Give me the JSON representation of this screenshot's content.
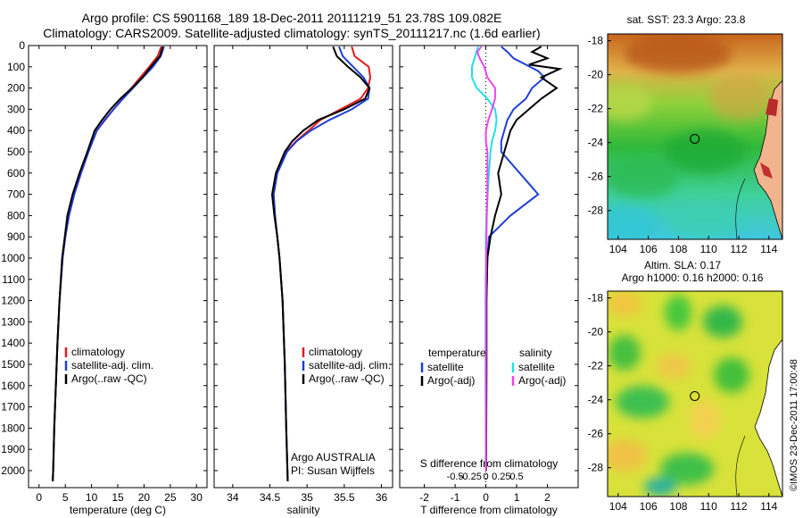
{
  "header": {
    "line1": "Argo profile: CS 5901168_189 18-Dec-2011 20111219_51 23.78S 109.082E",
    "line2": "Climatology: CARS2009. Satellite-adjusted climatology: synTS_20111217.nc (1.6d earlier)"
  },
  "colors": {
    "climatology": "#e31a1c",
    "satellite": "#1f3fd6",
    "argo": "#000000",
    "salinity_sat": "#20e0e8",
    "salinity_argo": "#ee44ee"
  },
  "chart_data": [
    {
      "type": "line",
      "name": "temperature_panel",
      "xlabel": "temperature (deg C)",
      "ylabel": "",
      "xlim": [
        -2,
        32
      ],
      "ylim": [
        2080,
        0
      ],
      "xticks": [
        0,
        5,
        10,
        15,
        20,
        25,
        30
      ],
      "yticks": [
        0,
        100,
        200,
        300,
        400,
        500,
        600,
        700,
        800,
        900,
        1000,
        1100,
        1200,
        1300,
        1400,
        1500,
        1600,
        1700,
        1800,
        1900,
        2000
      ],
      "legend": [
        "climatology",
        "satellite-adj. clim.",
        "Argo(..raw -QC)"
      ],
      "series": [
        {
          "name": "climatology",
          "color": "#e31a1c",
          "depth": [
            5,
            50,
            100,
            150,
            200,
            250,
            300,
            350,
            400,
            500,
            600,
            700,
            800,
            900,
            1000,
            1200,
            1400,
            1600,
            1800,
            2000,
            2050
          ],
          "values": [
            23.3,
            22.6,
            21.0,
            19.3,
            17.6,
            15.9,
            14.2,
            12.6,
            11.0,
            9.4,
            8.0,
            6.7,
            5.7,
            5.0,
            4.5,
            3.9,
            3.5,
            3.2,
            2.9,
            2.7,
            2.6
          ]
        },
        {
          "name": "satellite-adj. clim.",
          "color": "#1f3fd6",
          "depth": [
            5,
            50,
            100,
            150,
            200,
            250,
            300,
            350,
            400,
            500,
            600,
            700,
            800,
            900,
            1000,
            1200,
            1400,
            1600,
            1800,
            2000,
            2050
          ],
          "values": [
            23.8,
            23.2,
            21.7,
            19.8,
            17.9,
            16.0,
            14.2,
            12.5,
            11.0,
            9.4,
            8.0,
            6.7,
            5.7,
            5.0,
            4.5,
            3.9,
            3.5,
            3.2,
            2.9,
            2.7,
            2.6
          ]
        },
        {
          "name": "Argo(..raw -QC)",
          "color": "#000000",
          "depth": [
            5,
            50,
            100,
            150,
            200,
            250,
            300,
            350,
            400,
            500,
            600,
            700,
            800,
            900,
            1000,
            1200,
            1400,
            1600,
            1800,
            2000,
            2050
          ],
          "values": [
            23.6,
            23.0,
            21.3,
            19.7,
            17.7,
            15.5,
            13.6,
            12.0,
            10.6,
            9.2,
            7.7,
            6.4,
            5.4,
            4.9,
            4.4,
            3.9,
            3.5,
            3.2,
            2.9,
            2.7,
            2.6
          ]
        }
      ]
    },
    {
      "type": "line",
      "name": "salinity_panel",
      "xlabel": "salinity",
      "xlim": [
        33.75,
        36.15
      ],
      "ylim": [
        2080,
        0
      ],
      "xticks": [
        34,
        34.5,
        35,
        35.5,
        36
      ],
      "legend": [
        "climatology",
        "satellite-adj. clim.",
        "Argo(..raw -QC)"
      ],
      "annotation": [
        "Argo AUSTRALIA",
        "PI: Susan Wijffels"
      ],
      "series": [
        {
          "name": "climatology",
          "color": "#e31a1c",
          "depth": [
            5,
            50,
            100,
            150,
            200,
            250,
            300,
            350,
            400,
            450,
            500,
            600,
            700,
            800,
            900,
            1000,
            1200,
            1500,
            1800,
            2050
          ],
          "values": [
            35.6,
            35.64,
            35.83,
            35.85,
            35.82,
            35.72,
            35.45,
            35.18,
            35.02,
            34.85,
            34.72,
            34.6,
            34.55,
            34.57,
            34.6,
            34.63,
            34.67,
            34.7,
            34.72,
            34.74
          ]
        },
        {
          "name": "satellite-adj. clim.",
          "color": "#1f3fd6",
          "depth": [
            5,
            50,
            100,
            150,
            200,
            250,
            300,
            350,
            400,
            450,
            500,
            600,
            700,
            800,
            900,
            1000,
            1200,
            1500,
            1800,
            2050
          ],
          "values": [
            35.43,
            35.48,
            35.62,
            35.76,
            35.84,
            35.82,
            35.6,
            35.3,
            35.05,
            34.86,
            34.73,
            34.6,
            34.55,
            34.57,
            34.6,
            34.63,
            34.67,
            34.7,
            34.72,
            34.74
          ]
        },
        {
          "name": "Argo(..raw -QC)",
          "color": "#000000",
          "depth": [
            5,
            50,
            100,
            150,
            200,
            250,
            300,
            350,
            400,
            450,
            500,
            600,
            700,
            800,
            900,
            1000,
            1200,
            1500,
            1800,
            2050
          ],
          "values": [
            35.35,
            35.4,
            35.55,
            35.72,
            35.84,
            35.78,
            35.5,
            35.15,
            34.95,
            34.8,
            34.7,
            34.58,
            34.53,
            34.56,
            34.6,
            34.63,
            34.67,
            34.7,
            34.72,
            34.74
          ]
        }
      ]
    },
    {
      "type": "line",
      "name": "difference_panel",
      "xlabel": "T difference from climatology",
      "xlabel2": "S difference from climatology",
      "xlim": [
        -2.8,
        3.0
      ],
      "ylim": [
        2080,
        0
      ],
      "xticks": [
        -2,
        -1,
        0,
        1,
        2
      ],
      "xticklabels": [
        "-2",
        "-1",
        "0",
        "1",
        "2"
      ],
      "s_ticks": [
        "-0.5",
        "-0.25",
        "0",
        "0.25",
        "0.5"
      ],
      "legend": {
        "temperature_title": "temperature",
        "salinity_title": "salinity",
        "items": [
          "satellite",
          "Argo(-adj)",
          "satellite",
          "Argo(-adj)"
        ]
      },
      "series": [
        {
          "name": "T satellite",
          "color": "#1f3fd6",
          "depth": [
            5,
            30,
            60,
            90,
            120,
            150,
            200,
            250,
            300,
            350,
            400,
            450,
            500,
            600,
            700,
            800,
            900,
            1000,
            1200,
            1500,
            2000
          ],
          "values": [
            0.5,
            0.7,
            0.9,
            1.3,
            1.7,
            1.9,
            1.5,
            1.3,
            0.9,
            0.7,
            0.6,
            0.5,
            0.5,
            1.1,
            1.7,
            0.8,
            0.1,
            0.05,
            0.02,
            0.02,
            0.01
          ]
        },
        {
          "name": "T Argo(-adj)",
          "color": "#000000",
          "depth": [
            5,
            30,
            60,
            90,
            110,
            150,
            200,
            250,
            300,
            350,
            400,
            450,
            500,
            600,
            700,
            800,
            900,
            1000,
            1200,
            1500,
            2000
          ],
          "values": [
            1.8,
            1.5,
            2.0,
            1.4,
            2.4,
            1.8,
            2.3,
            1.8,
            1.4,
            1.0,
            0.8,
            0.7,
            0.6,
            0.4,
            0.5,
            0.3,
            0.15,
            0.05,
            0.02,
            0.02,
            0.01
          ]
        },
        {
          "name": "S satellite",
          "color": "#20e0e8",
          "depth": [
            5,
            50,
            100,
            150,
            200,
            250,
            300,
            350,
            400,
            450,
            500,
            600,
            700,
            800,
            900,
            1000,
            1200,
            1500,
            2000
          ],
          "values": [
            -0.25,
            -0.35,
            -0.45,
            -0.45,
            -0.3,
            0.05,
            0.3,
            0.35,
            0.3,
            0.2,
            0.15,
            0.1,
            0.06,
            0.02,
            0.0,
            0.0,
            -0.01,
            -0.01,
            0.0
          ]
        },
        {
          "name": "S Argo(-adj)",
          "color": "#ee44ee",
          "depth": [
            5,
            30,
            60,
            100,
            150,
            200,
            250,
            300,
            350,
            400,
            450,
            500,
            600,
            700,
            800,
            900,
            1000,
            1200,
            1500,
            2000
          ],
          "values": [
            -0.15,
            -0.28,
            -0.2,
            -0.05,
            0.05,
            0.3,
            0.3,
            0.2,
            0.08,
            0.0,
            0.0,
            0.05,
            0.05,
            0.05,
            0.03,
            0.02,
            0.01,
            0.0,
            0.0,
            0.0
          ]
        }
      ]
    },
    {
      "type": "heatmap",
      "name": "sst_map",
      "title": "sat. SST: 23.3 Argo: 23.8",
      "xticks": [
        104,
        106,
        108,
        110,
        112,
        114
      ],
      "yticks": [
        -18,
        -20,
        -22,
        -24,
        -26,
        -28
      ],
      "xlim": [
        103.3,
        114.9
      ],
      "ylim": [
        -29.7,
        -17.6
      ],
      "marker": {
        "lon": 109.082,
        "lat": -23.78
      }
    },
    {
      "type": "heatmap",
      "name": "sla_map",
      "title": "Altim. SLA: 0.17",
      "subtitle": "Argo h1000: 0.16 h2000: 0.16",
      "xticks": [
        104,
        106,
        108,
        110,
        112,
        114
      ],
      "yticks": [
        -18,
        -20,
        -22,
        -24,
        -26,
        -28
      ],
      "xlim": [
        103.3,
        114.9
      ],
      "ylim": [
        -29.7,
        -17.6
      ],
      "marker": {
        "lon": 109.082,
        "lat": -23.78
      }
    }
  ],
  "footer": {
    "credit": "©IMOS 23-Dec-2011 17:00:48"
  }
}
